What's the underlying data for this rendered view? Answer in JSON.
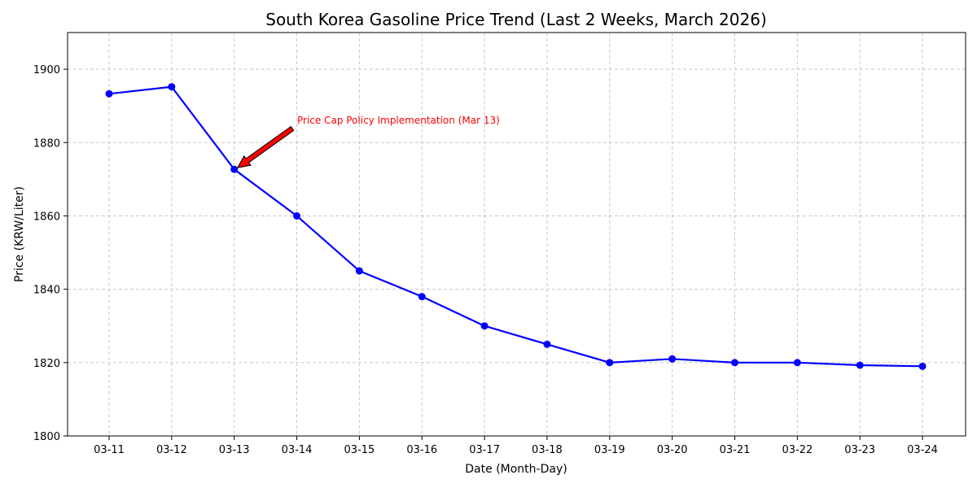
{
  "chart_data": {
    "type": "line",
    "title": "South Korea Gasoline Price Trend (Last 2 Weeks, March 2026)",
    "xlabel": "Date (Month-Day)",
    "ylabel": "Price (KRW/Liter)",
    "categories": [
      "03-11",
      "03-12",
      "03-13",
      "03-14",
      "03-15",
      "03-16",
      "03-17",
      "03-18",
      "03-19",
      "03-20",
      "03-21",
      "03-22",
      "03-23",
      "03-24"
    ],
    "series": [
      {
        "values": [
          1893.3,
          1895.2,
          1872.7,
          1860.0,
          1845.0,
          1838.0,
          1830.0,
          1825.0,
          1820.0,
          1821.0,
          1820.0,
          1820.0,
          1819.3,
          1819.0
        ],
        "color": "#0000ff"
      }
    ],
    "ylim": [
      1800,
      1910
    ],
    "yticks": [
      1800,
      1820,
      1840,
      1860,
      1880,
      1900
    ],
    "grid": true,
    "annotation": {
      "text": "Price Cap Policy Implementation (Mar 13)",
      "target_category": "03-13",
      "color": "#ff0000"
    }
  }
}
